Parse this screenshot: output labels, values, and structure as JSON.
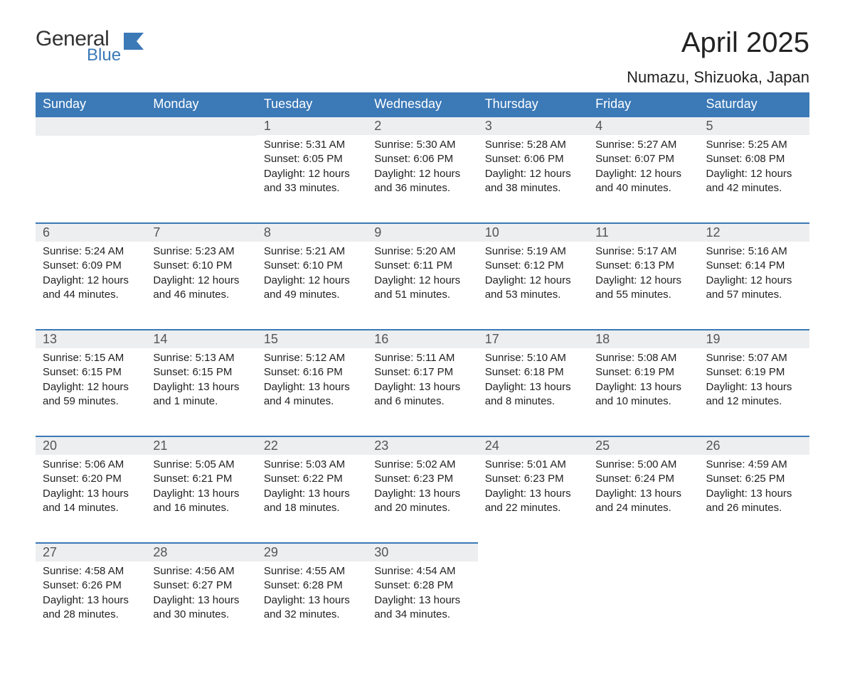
{
  "logo": {
    "general": "General",
    "blue": "Blue"
  },
  "title": "April 2025",
  "location": "Numazu, Shizuoka, Japan",
  "colors": {
    "header_bg": "#3b79b7",
    "header_text": "#ffffff",
    "daynum_bg": "#eceeef",
    "row_border": "#3b79b7",
    "body_text": "#222222",
    "logo_blue": "#3b79b7"
  },
  "day_headers": [
    "Sunday",
    "Monday",
    "Tuesday",
    "Wednesday",
    "Thursday",
    "Friday",
    "Saturday"
  ],
  "weeks": [
    [
      {
        "empty": true
      },
      {
        "empty": true
      },
      {
        "day": "1",
        "sunrise": "Sunrise: 5:31 AM",
        "sunset": "Sunset: 6:05 PM",
        "daylight": "Daylight: 12 hours and 33 minutes."
      },
      {
        "day": "2",
        "sunrise": "Sunrise: 5:30 AM",
        "sunset": "Sunset: 6:06 PM",
        "daylight": "Daylight: 12 hours and 36 minutes."
      },
      {
        "day": "3",
        "sunrise": "Sunrise: 5:28 AM",
        "sunset": "Sunset: 6:06 PM",
        "daylight": "Daylight: 12 hours and 38 minutes."
      },
      {
        "day": "4",
        "sunrise": "Sunrise: 5:27 AM",
        "sunset": "Sunset: 6:07 PM",
        "daylight": "Daylight: 12 hours and 40 minutes."
      },
      {
        "day": "5",
        "sunrise": "Sunrise: 5:25 AM",
        "sunset": "Sunset: 6:08 PM",
        "daylight": "Daylight: 12 hours and 42 minutes."
      }
    ],
    [
      {
        "day": "6",
        "sunrise": "Sunrise: 5:24 AM",
        "sunset": "Sunset: 6:09 PM",
        "daylight": "Daylight: 12 hours and 44 minutes."
      },
      {
        "day": "7",
        "sunrise": "Sunrise: 5:23 AM",
        "sunset": "Sunset: 6:10 PM",
        "daylight": "Daylight: 12 hours and 46 minutes."
      },
      {
        "day": "8",
        "sunrise": "Sunrise: 5:21 AM",
        "sunset": "Sunset: 6:10 PM",
        "daylight": "Daylight: 12 hours and 49 minutes."
      },
      {
        "day": "9",
        "sunrise": "Sunrise: 5:20 AM",
        "sunset": "Sunset: 6:11 PM",
        "daylight": "Daylight: 12 hours and 51 minutes."
      },
      {
        "day": "10",
        "sunrise": "Sunrise: 5:19 AM",
        "sunset": "Sunset: 6:12 PM",
        "daylight": "Daylight: 12 hours and 53 minutes."
      },
      {
        "day": "11",
        "sunrise": "Sunrise: 5:17 AM",
        "sunset": "Sunset: 6:13 PM",
        "daylight": "Daylight: 12 hours and 55 minutes."
      },
      {
        "day": "12",
        "sunrise": "Sunrise: 5:16 AM",
        "sunset": "Sunset: 6:14 PM",
        "daylight": "Daylight: 12 hours and 57 minutes."
      }
    ],
    [
      {
        "day": "13",
        "sunrise": "Sunrise: 5:15 AM",
        "sunset": "Sunset: 6:15 PM",
        "daylight": "Daylight: 12 hours and 59 minutes."
      },
      {
        "day": "14",
        "sunrise": "Sunrise: 5:13 AM",
        "sunset": "Sunset: 6:15 PM",
        "daylight": "Daylight: 13 hours and 1 minute."
      },
      {
        "day": "15",
        "sunrise": "Sunrise: 5:12 AM",
        "sunset": "Sunset: 6:16 PM",
        "daylight": "Daylight: 13 hours and 4 minutes."
      },
      {
        "day": "16",
        "sunrise": "Sunrise: 5:11 AM",
        "sunset": "Sunset: 6:17 PM",
        "daylight": "Daylight: 13 hours and 6 minutes."
      },
      {
        "day": "17",
        "sunrise": "Sunrise: 5:10 AM",
        "sunset": "Sunset: 6:18 PM",
        "daylight": "Daylight: 13 hours and 8 minutes."
      },
      {
        "day": "18",
        "sunrise": "Sunrise: 5:08 AM",
        "sunset": "Sunset: 6:19 PM",
        "daylight": "Daylight: 13 hours and 10 minutes."
      },
      {
        "day": "19",
        "sunrise": "Sunrise: 5:07 AM",
        "sunset": "Sunset: 6:19 PM",
        "daylight": "Daylight: 13 hours and 12 minutes."
      }
    ],
    [
      {
        "day": "20",
        "sunrise": "Sunrise: 5:06 AM",
        "sunset": "Sunset: 6:20 PM",
        "daylight": "Daylight: 13 hours and 14 minutes."
      },
      {
        "day": "21",
        "sunrise": "Sunrise: 5:05 AM",
        "sunset": "Sunset: 6:21 PM",
        "daylight": "Daylight: 13 hours and 16 minutes."
      },
      {
        "day": "22",
        "sunrise": "Sunrise: 5:03 AM",
        "sunset": "Sunset: 6:22 PM",
        "daylight": "Daylight: 13 hours and 18 minutes."
      },
      {
        "day": "23",
        "sunrise": "Sunrise: 5:02 AM",
        "sunset": "Sunset: 6:23 PM",
        "daylight": "Daylight: 13 hours and 20 minutes."
      },
      {
        "day": "24",
        "sunrise": "Sunrise: 5:01 AM",
        "sunset": "Sunset: 6:23 PM",
        "daylight": "Daylight: 13 hours and 22 minutes."
      },
      {
        "day": "25",
        "sunrise": "Sunrise: 5:00 AM",
        "sunset": "Sunset: 6:24 PM",
        "daylight": "Daylight: 13 hours and 24 minutes."
      },
      {
        "day": "26",
        "sunrise": "Sunrise: 4:59 AM",
        "sunset": "Sunset: 6:25 PM",
        "daylight": "Daylight: 13 hours and 26 minutes."
      }
    ],
    [
      {
        "day": "27",
        "sunrise": "Sunrise: 4:58 AM",
        "sunset": "Sunset: 6:26 PM",
        "daylight": "Daylight: 13 hours and 28 minutes."
      },
      {
        "day": "28",
        "sunrise": "Sunrise: 4:56 AM",
        "sunset": "Sunset: 6:27 PM",
        "daylight": "Daylight: 13 hours and 30 minutes."
      },
      {
        "day": "29",
        "sunrise": "Sunrise: 4:55 AM",
        "sunset": "Sunset: 6:28 PM",
        "daylight": "Daylight: 13 hours and 32 minutes."
      },
      {
        "day": "30",
        "sunrise": "Sunrise: 4:54 AM",
        "sunset": "Sunset: 6:28 PM",
        "daylight": "Daylight: 13 hours and 34 minutes."
      },
      {
        "empty": true,
        "noborder": true
      },
      {
        "empty": true,
        "noborder": true
      },
      {
        "empty": true,
        "noborder": true
      }
    ]
  ]
}
